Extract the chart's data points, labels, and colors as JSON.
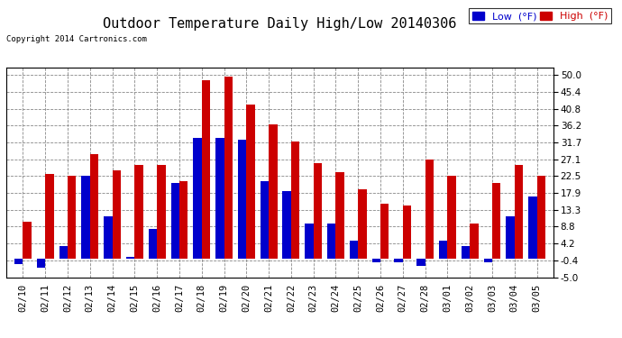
{
  "title": "Outdoor Temperature Daily High/Low 20140306",
  "copyright": "Copyright 2014 Cartronics.com",
  "legend_low": "Low  (°F)",
  "legend_high": "High  (°F)",
  "dates": [
    "02/10",
    "02/11",
    "02/12",
    "02/13",
    "02/14",
    "02/15",
    "02/16",
    "02/17",
    "02/18",
    "02/19",
    "02/20",
    "02/21",
    "02/22",
    "02/23",
    "02/24",
    "02/25",
    "02/26",
    "02/27",
    "02/28",
    "03/01",
    "03/02",
    "03/03",
    "03/04",
    "03/05"
  ],
  "high": [
    10.0,
    23.0,
    22.5,
    28.5,
    24.0,
    25.5,
    25.5,
    21.0,
    48.5,
    49.5,
    42.0,
    36.5,
    32.0,
    26.0,
    23.5,
    19.0,
    15.0,
    14.5,
    27.0,
    22.5,
    9.5,
    20.5,
    25.5,
    22.5
  ],
  "low": [
    -1.5,
    -2.5,
    3.5,
    22.5,
    11.5,
    0.5,
    8.0,
    20.5,
    33.0,
    33.0,
    32.5,
    21.0,
    18.5,
    9.5,
    9.5,
    5.0,
    -1.0,
    -1.0,
    -2.0,
    5.0,
    3.5,
    -1.0,
    11.5,
    17.0
  ],
  "ylim": [
    -5.0,
    52.0
  ],
  "yticks": [
    -5.0,
    -0.4,
    4.2,
    8.8,
    13.3,
    17.9,
    22.5,
    27.1,
    31.7,
    36.2,
    40.8,
    45.4,
    50.0
  ],
  "bar_width": 0.38,
  "low_color": "#0000cc",
  "high_color": "#cc0000",
  "background_color": "#ffffff",
  "grid_color": "#888888",
  "title_fontsize": 11,
  "axis_fontsize": 7.5,
  "legend_fontsize": 8,
  "fig_width": 6.9,
  "fig_height": 3.75,
  "dpi": 100
}
